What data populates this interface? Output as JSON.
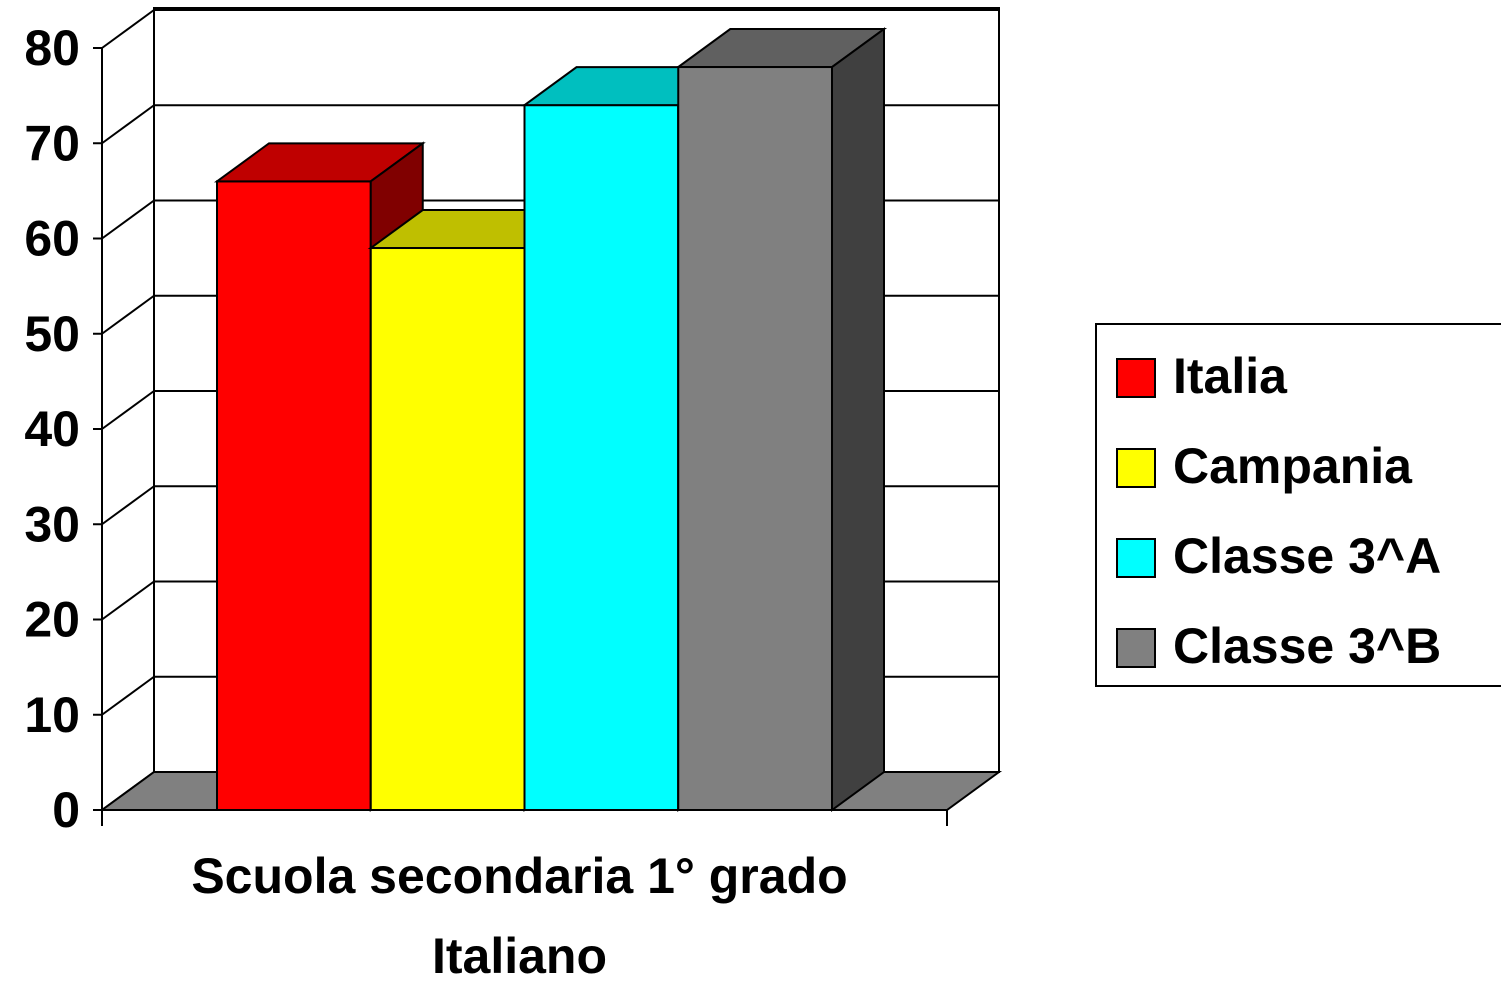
{
  "chart_data": {
    "type": "bar3d",
    "categories": [
      "Scuola secondaria 1° grado"
    ],
    "x_label": "Italiano",
    "series": [
      {
        "name": "Italia",
        "color": "#ff0000",
        "values": [
          66
        ]
      },
      {
        "name": "Campania",
        "color": "#ffff00",
        "values": [
          59
        ]
      },
      {
        "name": "Classe 3^A",
        "color": "#00ffff",
        "values": [
          74
        ]
      },
      {
        "name": "Classe 3^B",
        "color": "#808080",
        "values": [
          78
        ]
      }
    ],
    "ylim": [
      0,
      80
    ],
    "yticks": [
      0,
      10,
      20,
      30,
      40,
      50,
      60,
      70,
      80
    ],
    "grid": true,
    "legend": "right"
  }
}
